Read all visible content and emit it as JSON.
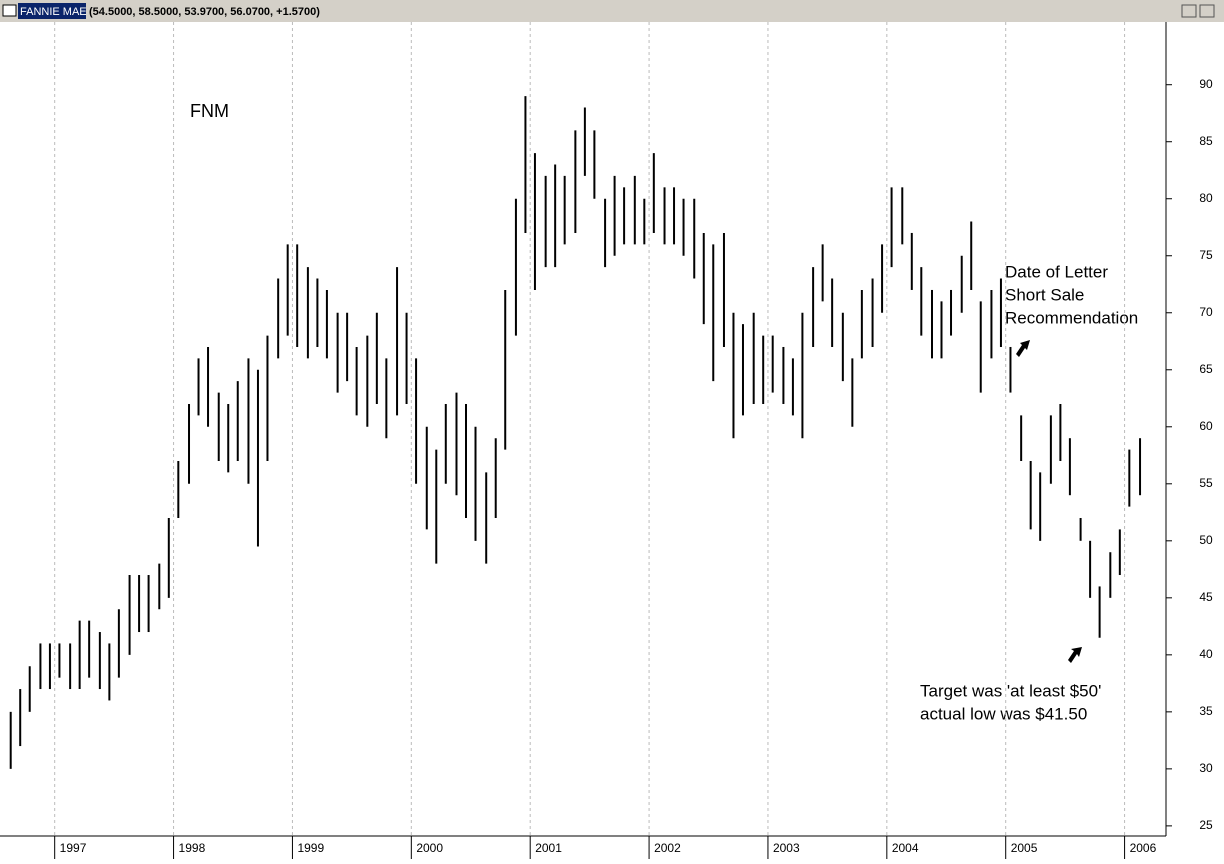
{
  "window": {
    "name": "FANNIE MAE",
    "quote": "(54.5000, 58.5000, 53.9700, 56.0700, +1.5700)"
  },
  "chart_data": {
    "type": "hilo",
    "title": "FNM",
    "annotations": [
      "Date of Letter",
      "Short Sale",
      "Recommendation",
      "Target was 'at least $50'",
      "actual low was $41.50"
    ],
    "x": [
      1996.63,
      1996.71,
      1996.79,
      1996.88,
      1996.96,
      1997.04,
      1997.13,
      1997.21,
      1997.29,
      1997.38,
      1997.46,
      1997.54,
      1997.63,
      1997.71,
      1997.79,
      1997.88,
      1997.96,
      1998.04,
      1998.13,
      1998.21,
      1998.29,
      1998.38,
      1998.46,
      1998.54,
      1998.63,
      1998.71,
      1998.79,
      1998.88,
      1998.96,
      1999.04,
      1999.13,
      1999.21,
      1999.29,
      1999.38,
      1999.46,
      1999.54,
      1999.63,
      1999.71,
      1999.79,
      1999.88,
      1999.96,
      2000.04,
      2000.13,
      2000.21,
      2000.29,
      2000.38,
      2000.46,
      2000.54,
      2000.63,
      2000.71,
      2000.79,
      2000.88,
      2000.96,
      2001.04,
      2001.13,
      2001.21,
      2001.29,
      2001.38,
      2001.46,
      2001.54,
      2001.63,
      2001.71,
      2001.79,
      2001.88,
      2001.96,
      2002.04,
      2002.13,
      2002.21,
      2002.29,
      2002.38,
      2002.46,
      2002.54,
      2002.63,
      2002.71,
      2002.79,
      2002.88,
      2002.96,
      2003.04,
      2003.13,
      2003.21,
      2003.29,
      2003.38,
      2003.46,
      2003.54,
      2003.63,
      2003.71,
      2003.79,
      2003.88,
      2003.96,
      2004.04,
      2004.13,
      2004.21,
      2004.29,
      2004.38,
      2004.46,
      2004.54,
      2004.63,
      2004.71,
      2004.79,
      2004.88,
      2004.96,
      2005.04,
      2005.13,
      2005.21,
      2005.29,
      2005.38,
      2005.46,
      2005.54,
      2005.63,
      2005.71,
      2005.79,
      2005.88,
      2005.96,
      2006.04,
      2006.13
    ],
    "high": [
      35,
      37,
      39,
      41,
      41,
      41,
      41,
      43,
      43,
      42,
      41,
      44,
      47,
      47,
      47,
      48,
      52,
      57,
      62,
      66,
      67,
      63,
      62,
      64,
      66,
      65,
      68,
      73,
      76,
      76,
      74,
      73,
      72,
      70,
      70,
      67,
      68,
      70,
      66,
      74,
      70,
      66,
      60,
      58,
      62,
      63,
      62,
      60,
      56,
      59,
      72,
      80,
      89,
      84,
      82,
      83,
      82,
      86,
      88,
      86,
      80,
      82,
      81,
      82,
      80,
      84,
      81,
      81,
      80,
      80,
      77,
      76,
      77,
      70,
      69,
      70,
      68,
      68,
      67,
      66,
      70,
      74,
      76,
      73,
      70,
      66,
      72,
      73,
      76,
      81,
      81,
      77,
      74,
      72,
      71,
      72,
      75,
      78,
      71,
      72,
      73,
      67,
      61,
      57,
      56,
      61,
      62,
      59,
      52,
      50,
      46,
      49,
      51,
      58,
      59
    ],
    "low": [
      30,
      32,
      35,
      37,
      37,
      38,
      37,
      37,
      38,
      37,
      36,
      38,
      40,
      42,
      42,
      44,
      45,
      52,
      55,
      61,
      60,
      57,
      56,
      57,
      55,
      49.5,
      57,
      66,
      68,
      67,
      66,
      67,
      66,
      63,
      64,
      61,
      60,
      62,
      59,
      61,
      62,
      55,
      51,
      48,
      55,
      54,
      52,
      50,
      48,
      52,
      58,
      68,
      77,
      72,
      74,
      74,
      76,
      77,
      82,
      80,
      74,
      75,
      76,
      76,
      76,
      77,
      76,
      76,
      75,
      73,
      69,
      64,
      67,
      59,
      61,
      62,
      62,
      63,
      62,
      61,
      59,
      67,
      71,
      67,
      64,
      60,
      66,
      67,
      70,
      74,
      76,
      72,
      68,
      66,
      66,
      68,
      70,
      72,
      63,
      66,
      67,
      63,
      57,
      51,
      50,
      55,
      57,
      54,
      50,
      45,
      41.5,
      45,
      47,
      53,
      54
    ],
    "color": "#000000",
    "xlim": [
      1996.54,
      2006.34
    ],
    "xticks": [
      1997,
      1998,
      1999,
      2000,
      2001,
      2002,
      2003,
      2004,
      2005,
      2006
    ],
    "ylim": [
      24.2,
      95.5
    ],
    "yticks": [
      25,
      30,
      35,
      40,
      45,
      50,
      55,
      60,
      65,
      70,
      75,
      80,
      85,
      90
    ],
    "grid": true
  }
}
